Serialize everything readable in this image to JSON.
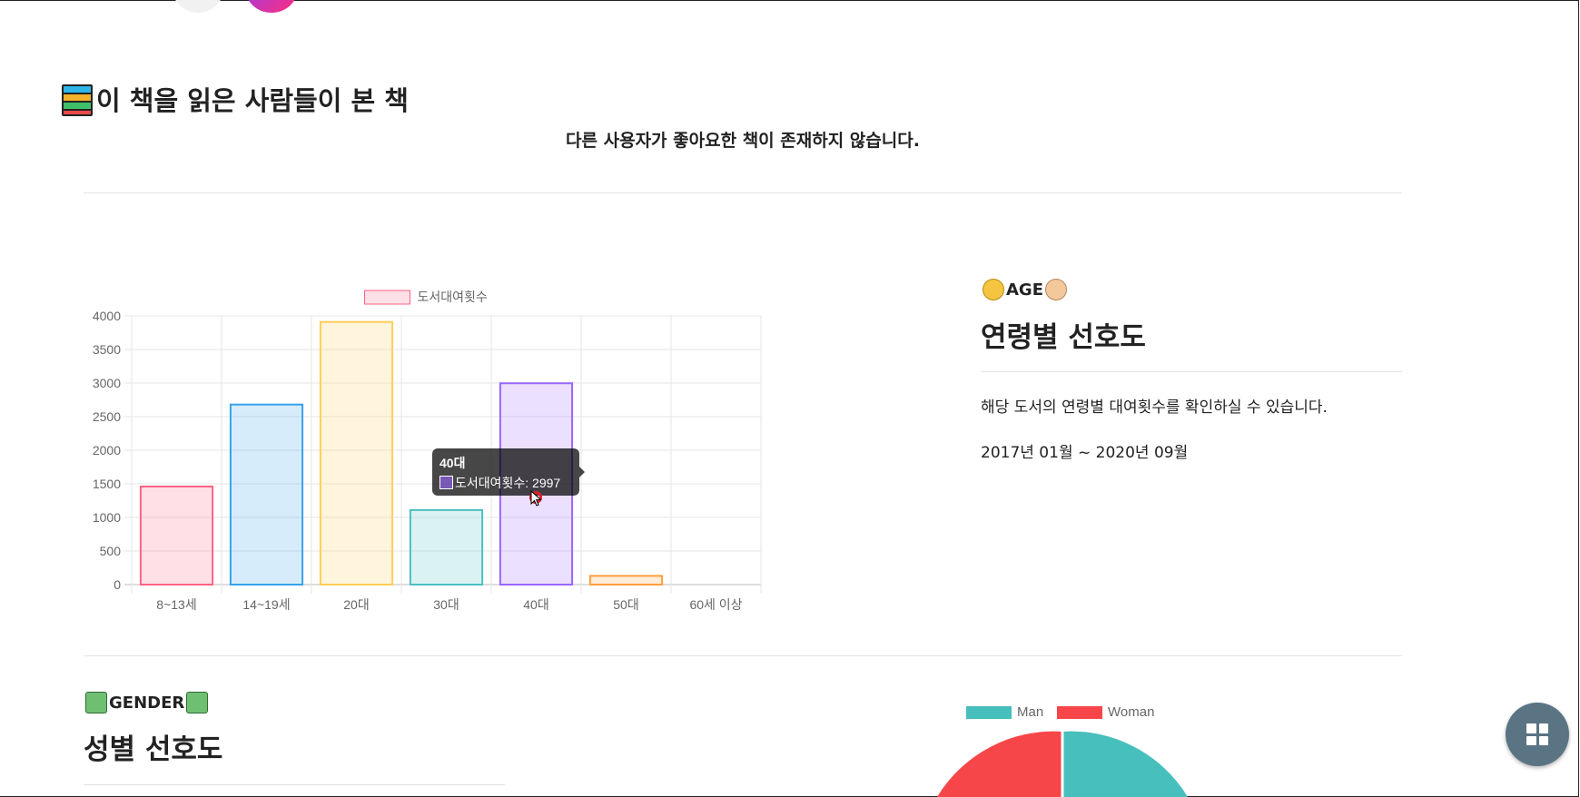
{
  "related": {
    "title": "이 책을 읽은 사람들이 본 책",
    "empty_message": "다른 사용자가 좋아요한 책이 존재하지 않습니다."
  },
  "age_section": {
    "tag": "AGE",
    "heading": "연령별 선호도",
    "description": "해당 도서의 연령별 대여횟수를 확인하실 수 있습니다.",
    "period": "2017년 01월 ~ 2020년 09월"
  },
  "gender_section": {
    "tag": "GENDER",
    "heading": "성별 선호도"
  },
  "chart_data": [
    {
      "type": "bar",
      "categories": [
        "8~13세",
        "14~19세",
        "20대",
        "30대",
        "40대",
        "50대",
        "60세 이상"
      ],
      "series": [
        {
          "name": "도서대여횟수",
          "values": [
            1460,
            2680,
            3910,
            1110,
            2997,
            130,
            0
          ]
        }
      ],
      "colors": {
        "fill": [
          "rgba(255,99,132,0.2)",
          "rgba(54,162,235,0.2)",
          "rgba(255,206,86,0.2)",
          "rgba(75,192,192,0.2)",
          "rgba(153,102,255,0.2)",
          "rgba(255,159,64,0.2)",
          "rgba(201,203,207,0.2)"
        ],
        "stroke": [
          "#ff6384",
          "#36a2eb",
          "#ffce56",
          "#4bc0c0",
          "#9966ff",
          "#ff9f40",
          "#c9cbcf"
        ]
      },
      "ylim": [
        0,
        4000
      ],
      "yticks": [
        0,
        500,
        1000,
        1500,
        2000,
        2500,
        3000,
        3500,
        4000
      ],
      "grid": true,
      "legend": "top",
      "tooltip": {
        "category": "40대",
        "label": "도서대여횟수: 2997"
      }
    },
    {
      "type": "pie",
      "labels": [
        "Man",
        "Woman"
      ],
      "colors": [
        "#46bfbd",
        "#f7464a"
      ],
      "legend": "top"
    }
  ],
  "icons": {
    "books": "books-icon",
    "age_left": "child-face-icon",
    "age_right": "old-face-icon",
    "gender": "person-icon",
    "fab": "grid-menu-icon"
  }
}
